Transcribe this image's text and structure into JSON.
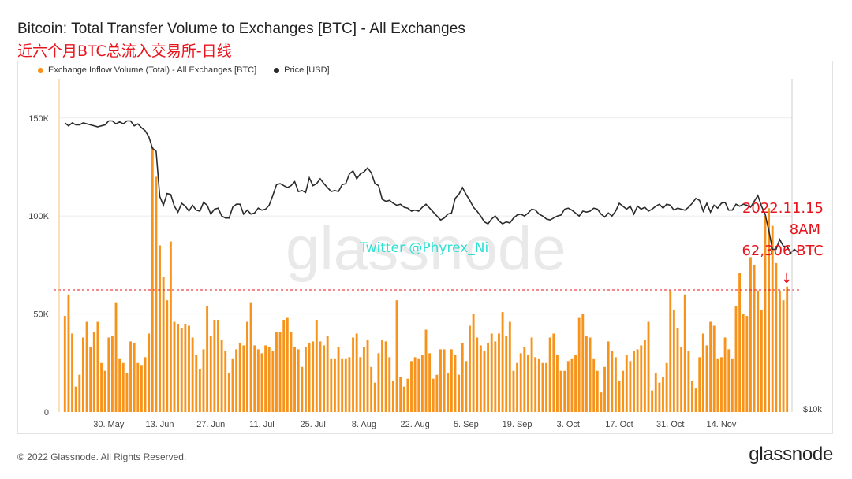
{
  "title": "Bitcoin: Total Transfer Volume to Exchanges [BTC] - All Exchanges",
  "subtitle": "近六个月BTC总流入交易所-日线",
  "legend": [
    {
      "label": "Exchange Inflow Volume (Total) - All Exchanges [BTC]",
      "color": "#f7931a"
    },
    {
      "label": "Price [USD]",
      "color": "#2b2b2b"
    }
  ],
  "watermark": "glassnode",
  "twitter_text": "Twitter @Phyrex_Ni",
  "annotation": {
    "lines": [
      "2022.11.15",
      "8AM",
      "62,306 BTC"
    ],
    "arrow": "↓",
    "value": 62306,
    "color": "#e8141c"
  },
  "footer": {
    "copyright": "© 2022 Glassnode. All Rights Reserved.",
    "logo": "glassnode"
  },
  "chart_data": {
    "type": "bar",
    "title": "Bitcoin: Total Transfer Volume to Exchanges [BTC] - All Exchanges",
    "ylim": [
      0,
      170000
    ],
    "y_ticks": [
      0,
      50000,
      100000,
      150000
    ],
    "y_tick_labels": [
      "0",
      "50K",
      "100K",
      "150K"
    ],
    "right_axis_label": "$10k",
    "x_tick_labels": [
      "30. May",
      "13. Jun",
      "27. Jun",
      "11. Jul",
      "25. Jul",
      "8. Aug",
      "22. Aug",
      "5. Sep",
      "19. Sep",
      "3. Oct",
      "17. Oct",
      "31. Oct",
      "14. Nov"
    ],
    "x_tick_index": [
      12,
      26,
      40,
      54,
      68,
      82,
      96,
      110,
      124,
      138,
      152,
      166,
      180
    ],
    "reference_line": 62306,
    "series": [
      {
        "name": "Exchange Inflow Volume (Total) - All Exchanges [BTC]",
        "kind": "bar",
        "color": "#f7931a",
        "values": [
          49000,
          60000,
          40000,
          13000,
          19000,
          38000,
          46000,
          33000,
          41000,
          46000,
          25000,
          21000,
          38000,
          39000,
          56000,
          27000,
          25000,
          20000,
          36000,
          35000,
          25000,
          24000,
          28000,
          40000,
          135000,
          120000,
          85000,
          69000,
          57000,
          87000,
          46000,
          45000,
          43000,
          45000,
          44000,
          38000,
          29000,
          22000,
          32000,
          54000,
          39000,
          47000,
          47000,
          37000,
          31000,
          20000,
          27000,
          32000,
          35000,
          34000,
          46000,
          56000,
          34000,
          32000,
          30000,
          34000,
          33000,
          31000,
          41000,
          41000,
          47000,
          48000,
          41000,
          33000,
          32000,
          23000,
          33000,
          35000,
          36000,
          47000,
          36000,
          34000,
          39000,
          27000,
          27000,
          33000,
          27000,
          27000,
          28000,
          38000,
          40000,
          28000,
          33000,
          37000,
          23000,
          15000,
          30000,
          37000,
          36000,
          28000,
          16000,
          57000,
          18000,
          13000,
          17000,
          26000,
          28000,
          27000,
          29000,
          42000,
          30000,
          17000,
          19000,
          32000,
          32000,
          20000,
          32000,
          29000,
          19000,
          35000,
          26000,
          44000,
          50000,
          38000,
          34000,
          31000,
          35000,
          40000,
          36000,
          40000,
          51000,
          39000,
          46000,
          21000,
          25000,
          30000,
          33000,
          29000,
          38000,
          28000,
          27000,
          25000,
          25000,
          38000,
          40000,
          29000,
          21000,
          21000,
          26000,
          27000,
          29000,
          48000,
          50000,
          39000,
          38000,
          27000,
          21000,
          10000,
          23000,
          36000,
          31000,
          28000,
          16000,
          21000,
          29000,
          26000,
          31000,
          32000,
          34000,
          37000,
          46000,
          11000,
          20000,
          15000,
          18000,
          25000,
          62000,
          52000,
          43000,
          33000,
          60000,
          31000,
          16000,
          12000,
          28000,
          40000,
          34000,
          46000,
          44000,
          27000,
          28000,
          38000,
          32000,
          27000,
          54000,
          71000,
          50000,
          49000,
          79000,
          75000,
          62000,
          52000,
          100000,
          104000,
          95000,
          76000,
          62000,
          57000,
          64000
        ]
      },
      {
        "name": "Price [USD]",
        "kind": "line",
        "color": "#2b2b2b",
        "unit": "$10k",
        "values": [
          2.95,
          2.92,
          2.95,
          2.93,
          2.93,
          2.95,
          2.94,
          2.93,
          2.92,
          2.91,
          2.92,
          2.93,
          2.97,
          2.97,
          2.94,
          2.96,
          2.94,
          2.97,
          2.97,
          2.92,
          2.94,
          2.9,
          2.87,
          2.81,
          2.69,
          2.66,
          2.2,
          2.11,
          2.23,
          2.22,
          2.1,
          2.04,
          2.13,
          2.1,
          2.05,
          2.11,
          2.06,
          2.05,
          2.14,
          2.11,
          2.02,
          2.07,
          2.08,
          2.0,
          1.98,
          1.98,
          2.09,
          2.12,
          2.12,
          2.02,
          2.06,
          2.02,
          2.03,
          2.08,
          2.06,
          2.07,
          2.11,
          2.21,
          2.32,
          2.33,
          2.31,
          2.29,
          2.31,
          2.35,
          2.25,
          2.26,
          2.24,
          2.39,
          2.31,
          2.33,
          2.38,
          2.33,
          2.29,
          2.25,
          2.26,
          2.25,
          2.32,
          2.33,
          2.43,
          2.46,
          2.38,
          2.43,
          2.45,
          2.49,
          2.44,
          2.33,
          2.31,
          2.17,
          2.15,
          2.16,
          2.13,
          2.11,
          2.12,
          2.09,
          2.08,
          2.05,
          2.06,
          2.05,
          2.09,
          2.12,
          2.08,
          2.04,
          2.0,
          1.96,
          1.98,
          2.02,
          2.03,
          2.18,
          2.22,
          2.29,
          2.22,
          2.16,
          2.09,
          2.05,
          2.0,
          1.94,
          1.92,
          1.97,
          2.0,
          1.95,
          1.92,
          1.94,
          1.93,
          1.98,
          2.01,
          2.02,
          2.0,
          2.03,
          2.07,
          2.06,
          2.02,
          2.0,
          1.97,
          1.96,
          1.98,
          2.0,
          2.01,
          2.07,
          2.08,
          2.06,
          2.03,
          2.0,
          2.05,
          2.04,
          2.05,
          2.08,
          2.07,
          2.02,
          1.99,
          2.03,
          2.0,
          2.05,
          2.13,
          2.1,
          2.07,
          2.1,
          2.02,
          2.1,
          2.07,
          2.09,
          2.05,
          2.07,
          2.1,
          2.12,
          2.08,
          2.12,
          2.11,
          2.06,
          2.08,
          2.07,
          2.06,
          2.09,
          2.13,
          2.18,
          2.16,
          2.05,
          2.13,
          2.04,
          2.11,
          2.08,
          2.13,
          2.14,
          2.06,
          2.06,
          2.12,
          2.1,
          2.12,
          2.11,
          2.09,
          2.15,
          2.21,
          2.1,
          2.02,
          1.85,
          1.66,
          1.66,
          1.76,
          1.69,
          1.69,
          1.62,
          1.66,
          1.63
        ]
      }
    ]
  }
}
